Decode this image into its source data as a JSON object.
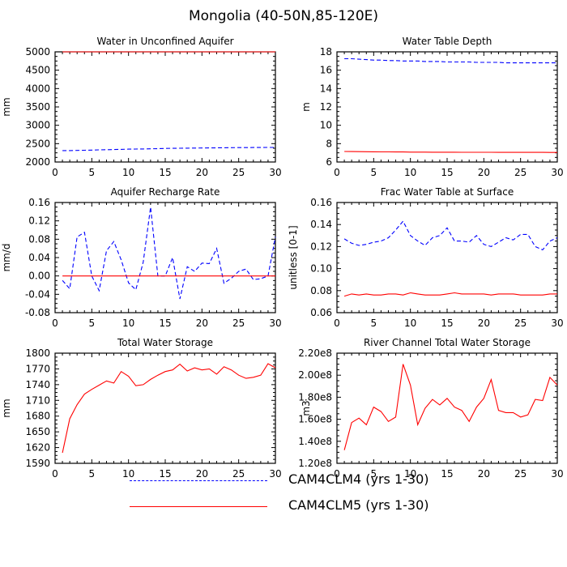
{
  "figure": {
    "title": "Mongolia (40-50N,85-120E)",
    "colors": {
      "dashed_series": "#0000ff",
      "solid_series": "#ff0000",
      "axes": "#000000"
    }
  },
  "legend": {
    "items": [
      {
        "label": "CAM4CLM4 (yrs 1-30)",
        "color": "#0000ff",
        "style": "dashed"
      },
      {
        "label": "CAM4CLM5 (yrs 1-30)",
        "color": "#ff0000",
        "style": "solid"
      }
    ]
  },
  "chart_data": [
    {
      "type": "line",
      "title": "Water in Unconfined Aquifer",
      "ylabel": "mm",
      "xlim": [
        0,
        30
      ],
      "ylim": [
        2000,
        5000
      ],
      "xticks": [
        0,
        5,
        10,
        15,
        20,
        25,
        30
      ],
      "yticks": [
        2000,
        2500,
        3000,
        3500,
        4000,
        4500,
        5000
      ],
      "ytick_labels": [
        "2000",
        "2500",
        "3000",
        "3500",
        "4000",
        "4500",
        "5000"
      ],
      "x": [
        1,
        2,
        3,
        4,
        5,
        6,
        7,
        8,
        9,
        10,
        11,
        12,
        13,
        14,
        15,
        16,
        17,
        18,
        19,
        20,
        21,
        22,
        23,
        24,
        25,
        26,
        27,
        28,
        29,
        30
      ],
      "series": [
        {
          "name": "CAM4CLM4 (yrs 1-30)",
          "style": "dashed",
          "color": "#0000ff",
          "values": [
            2310,
            2310,
            2315,
            2320,
            2325,
            2330,
            2335,
            2340,
            2345,
            2350,
            2352,
            2355,
            2360,
            2365,
            2370,
            2372,
            2375,
            2378,
            2380,
            2382,
            2384,
            2386,
            2388,
            2390,
            2392,
            2393,
            2394,
            2395,
            2396,
            2397
          ]
        },
        {
          "name": "CAM4CLM5 (yrs 1-30)",
          "style": "solid",
          "color": "#ff0000",
          "values": [
            5000,
            5000,
            5000,
            5000,
            5000,
            5000,
            5000,
            5000,
            5000,
            5000,
            5000,
            5000,
            5000,
            5000,
            5000,
            5000,
            5000,
            5000,
            5000,
            5000,
            5000,
            5000,
            5000,
            5000,
            5000,
            5000,
            5000,
            5000,
            5000,
            5000
          ]
        }
      ]
    },
    {
      "type": "line",
      "title": "Water Table Depth",
      "ylabel": "m",
      "xlim": [
        0,
        30
      ],
      "ylim": [
        6,
        18
      ],
      "xticks": [
        0,
        5,
        10,
        15,
        20,
        25,
        30
      ],
      "yticks": [
        6,
        8,
        10,
        12,
        14,
        16,
        18
      ],
      "ytick_labels": [
        "6",
        "8",
        "10",
        "12",
        "14",
        "16",
        "18"
      ],
      "x": [
        1,
        2,
        3,
        4,
        5,
        6,
        7,
        8,
        9,
        10,
        11,
        12,
        13,
        14,
        15,
        16,
        17,
        18,
        19,
        20,
        21,
        22,
        23,
        24,
        25,
        26,
        27,
        28,
        29,
        30
      ],
      "series": [
        {
          "name": "CAM4CLM4 (yrs 1-30)",
          "style": "dashed",
          "color": "#0000ff",
          "values": [
            17.25,
            17.25,
            17.2,
            17.15,
            17.1,
            17.1,
            17.05,
            17.05,
            17.0,
            17.0,
            17.0,
            16.95,
            16.95,
            16.95,
            16.9,
            16.9,
            16.9,
            16.9,
            16.85,
            16.85,
            16.85,
            16.85,
            16.8,
            16.8,
            16.8,
            16.8,
            16.8,
            16.8,
            16.8,
            16.8
          ]
        },
        {
          "name": "CAM4CLM5 (yrs 1-30)",
          "style": "solid",
          "color": "#ff0000",
          "values": [
            7.15,
            7.14,
            7.13,
            7.12,
            7.11,
            7.1,
            7.1,
            7.09,
            7.09,
            7.08,
            7.08,
            7.08,
            7.07,
            7.07,
            7.07,
            7.07,
            7.06,
            7.06,
            7.06,
            7.06,
            7.06,
            7.05,
            7.05,
            7.05,
            7.05,
            7.05,
            7.05,
            7.05,
            7.04,
            7.04
          ]
        }
      ]
    },
    {
      "type": "line",
      "title": "Aquifer Recharge Rate",
      "ylabel": "mm/d",
      "xlim": [
        0,
        30
      ],
      "ylim": [
        -0.08,
        0.16
      ],
      "xticks": [
        0,
        5,
        10,
        15,
        20,
        25,
        30
      ],
      "yticks": [
        -0.08,
        -0.04,
        0.0,
        0.04,
        0.08,
        0.12,
        0.16
      ],
      "ytick_labels": [
        "-0.08",
        "-0.04",
        "0.00",
        "0.04",
        "0.08",
        "0.12",
        "0.16"
      ],
      "x": [
        1,
        2,
        3,
        4,
        5,
        6,
        7,
        8,
        9,
        10,
        11,
        12,
        13,
        14,
        15,
        16,
        17,
        18,
        19,
        20,
        21,
        22,
        23,
        24,
        25,
        26,
        27,
        28,
        29,
        30
      ],
      "series": [
        {
          "name": "CAM4CLM4 (yrs 1-30)",
          "style": "dashed",
          "color": "#0000ff",
          "values": [
            -0.01,
            -0.028,
            0.085,
            0.095,
            0.0,
            -0.032,
            0.055,
            0.075,
            0.035,
            -0.015,
            -0.03,
            0.03,
            0.15,
            0.0,
            0.0,
            0.04,
            -0.05,
            0.02,
            0.01,
            0.028,
            0.027,
            0.06,
            -0.016,
            -0.005,
            0.01,
            0.015,
            -0.008,
            -0.006,
            0.0,
            0.085
          ]
        },
        {
          "name": "CAM4CLM5 (yrs 1-30)",
          "style": "solid",
          "color": "#ff0000",
          "values": [
            0,
            0,
            0,
            0,
            0,
            0,
            0,
            0,
            0,
            0,
            0,
            0,
            0,
            0,
            0,
            0,
            0,
            0,
            0,
            0,
            0,
            0,
            0,
            0,
            0,
            0,
            0,
            0,
            0,
            0
          ]
        }
      ]
    },
    {
      "type": "line",
      "title": "Frac Water Table at Surface",
      "ylabel": "unitless [0-1]",
      "xlim": [
        0,
        30
      ],
      "ylim": [
        0.06,
        0.16
      ],
      "xticks": [
        0,
        5,
        10,
        15,
        20,
        25,
        30
      ],
      "yticks": [
        0.06,
        0.08,
        0.1,
        0.12,
        0.14,
        0.16
      ],
      "ytick_labels": [
        "0.06",
        "0.08",
        "0.10",
        "0.12",
        "0.14",
        "0.16"
      ],
      "x": [
        1,
        2,
        3,
        4,
        5,
        6,
        7,
        8,
        9,
        10,
        11,
        12,
        13,
        14,
        15,
        16,
        17,
        18,
        19,
        20,
        21,
        22,
        23,
        24,
        25,
        26,
        27,
        28,
        29,
        30
      ],
      "series": [
        {
          "name": "CAM4CLM4 (yrs 1-30)",
          "style": "dashed",
          "color": "#0000ff",
          "values": [
            0.127,
            0.123,
            0.121,
            0.122,
            0.124,
            0.125,
            0.128,
            0.135,
            0.143,
            0.13,
            0.125,
            0.121,
            0.128,
            0.13,
            0.137,
            0.125,
            0.125,
            0.124,
            0.13,
            0.122,
            0.12,
            0.124,
            0.128,
            0.126,
            0.131,
            0.131,
            0.12,
            0.117,
            0.125,
            0.128
          ]
        },
        {
          "name": "CAM4CLM5 (yrs 1-30)",
          "style": "solid",
          "color": "#ff0000",
          "values": [
            0.075,
            0.077,
            0.076,
            0.077,
            0.076,
            0.076,
            0.077,
            0.077,
            0.076,
            0.078,
            0.077,
            0.076,
            0.076,
            0.076,
            0.077,
            0.078,
            0.077,
            0.077,
            0.077,
            0.077,
            0.076,
            0.077,
            0.077,
            0.077,
            0.076,
            0.076,
            0.076,
            0.076,
            0.077,
            0.077
          ]
        }
      ]
    },
    {
      "type": "line",
      "title": "Total Water Storage",
      "ylabel": "mm",
      "xlim": [
        0,
        30
      ],
      "ylim": [
        1590,
        1800
      ],
      "xticks": [
        0,
        5,
        10,
        15,
        20,
        25,
        30
      ],
      "yticks": [
        1590,
        1620,
        1650,
        1680,
        1710,
        1740,
        1770,
        1800
      ],
      "ytick_labels": [
        "1590",
        "1620",
        "1650",
        "1680",
        "1710",
        "1740",
        "1770",
        "1800"
      ],
      "x": [
        1,
        2,
        3,
        4,
        5,
        6,
        7,
        8,
        9,
        10,
        11,
        12,
        13,
        14,
        15,
        16,
        17,
        18,
        19,
        20,
        21,
        22,
        23,
        24,
        25,
        26,
        27,
        28,
        29,
        30
      ],
      "series": [
        {
          "name": "CAM4CLM5 (yrs 1-30)",
          "style": "solid",
          "color": "#ff0000",
          "values": [
            1610,
            1675,
            1702,
            1722,
            1731,
            1739,
            1747,
            1743,
            1765,
            1756,
            1738,
            1740,
            1750,
            1758,
            1765,
            1768,
            1779,
            1766,
            1772,
            1768,
            1770,
            1760,
            1774,
            1768,
            1758,
            1752,
            1754,
            1758,
            1780,
            1772
          ]
        }
      ]
    },
    {
      "type": "line",
      "title": "River Channel Total Water Storage",
      "ylabel": "m3",
      "xlim": [
        0,
        30
      ],
      "ylim": [
        120000000,
        220000000
      ],
      "xticks": [
        0,
        5,
        10,
        15,
        20,
        25,
        30
      ],
      "yticks": [
        120000000,
        140000000,
        160000000,
        180000000,
        200000000,
        220000000
      ],
      "ytick_labels": [
        "1.20e8",
        "1.40e8",
        "1.60e8",
        "1.80e8",
        "2.00e8",
        "2.20e8"
      ],
      "x": [
        1,
        2,
        3,
        4,
        5,
        6,
        7,
        8,
        9,
        10,
        11,
        12,
        13,
        14,
        15,
        16,
        17,
        18,
        19,
        20,
        21,
        22,
        23,
        24,
        25,
        26,
        27,
        28,
        29,
        30
      ],
      "series": [
        {
          "name": "CAM4CLM5 (yrs 1-30)",
          "style": "solid",
          "color": "#ff0000",
          "values": [
            132000000,
            157000000,
            161000000,
            155000000,
            171000000,
            167000000,
            158000000,
            162000000,
            210000000,
            191000000,
            155000000,
            170000000,
            178000000,
            173000000,
            179000000,
            171000000,
            168000000,
            158000000,
            171000000,
            179000000,
            196000000,
            168000000,
            166000000,
            166000000,
            162000000,
            164000000,
            178000000,
            177000000,
            198000000,
            191000000
          ]
        }
      ]
    }
  ]
}
